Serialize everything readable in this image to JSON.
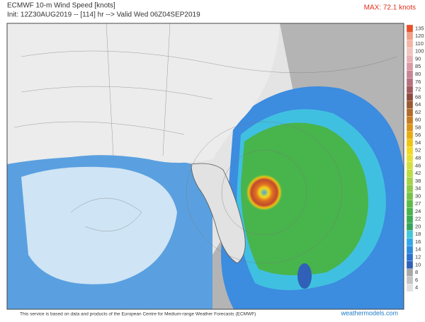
{
  "header": {
    "title": "ECMWF 10-m Wind Speed [knots]",
    "subtitle": "Init: 12Z30AUG2019 -- [114] hr --> Valid Wed 06Z04SEP2019",
    "max": "MAX: 72.1 knots"
  },
  "colorbar": {
    "ticks": [
      135,
      120,
      110,
      100,
      90,
      85,
      80,
      76,
      72,
      68,
      64,
      62,
      60,
      58,
      56,
      54,
      52,
      48,
      46,
      42,
      38,
      34,
      30,
      27,
      24,
      22,
      20,
      18,
      16,
      14,
      12,
      10,
      8,
      6,
      4
    ],
    "colors": [
      "#e8502a",
      "#f2a08a",
      "#f3b5a6",
      "#f0c4bc",
      "#eab0b8",
      "#d99aa6",
      "#c88496",
      "#b6707e",
      "#a25a5e",
      "#8e4a3e",
      "#9a5a30",
      "#b26a28",
      "#c87c20",
      "#dc9418",
      "#e8ac10",
      "#f0c410",
      "#f4d81c",
      "#e8e030",
      "#d4e040",
      "#bcdc44",
      "#a4d448",
      "#8ccc48",
      "#74c448",
      "#5cbc48",
      "#48b44c",
      "#3cac54",
      "#34a45c",
      "#40c8d8",
      "#30a8e8",
      "#2c8ce0",
      "#2a70d0",
      "#3060b8",
      "#a8a8a8",
      "#c4c4c4",
      "#e0e0e0"
    ]
  },
  "footer": {
    "credit": "This service is based on data and products of the European Centre for Medium-range Weather Forecasts (ECMWF)",
    "watermark": "weathermodels.com"
  }
}
